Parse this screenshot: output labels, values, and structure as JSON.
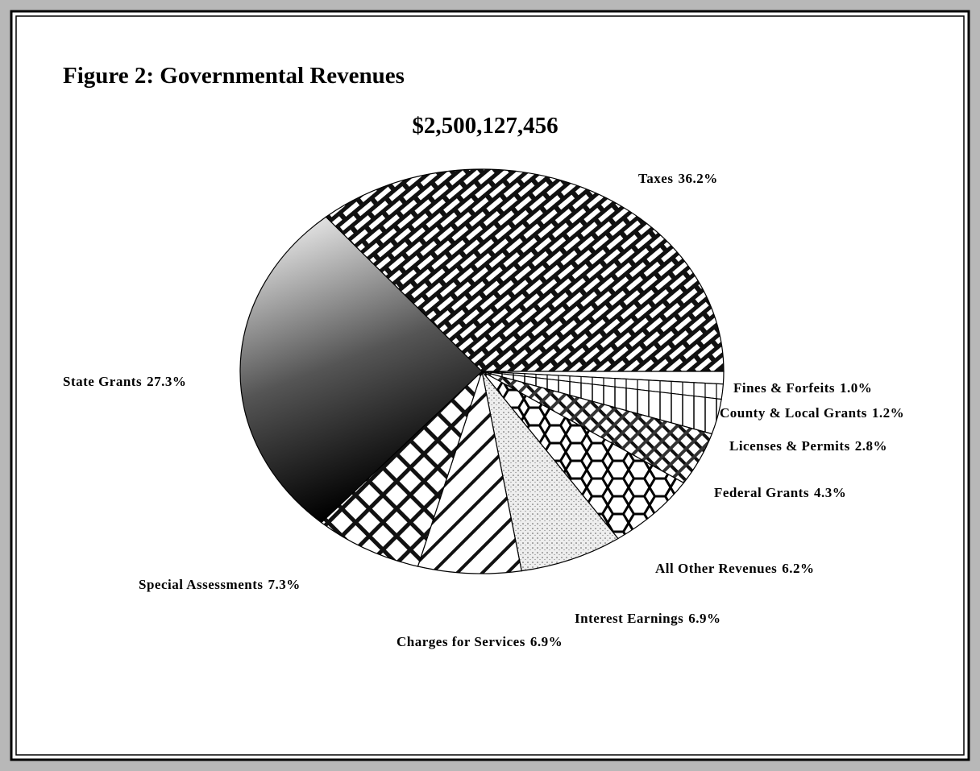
{
  "chart_data": {
    "type": "pie",
    "title": "Figure 2: Governmental Revenues",
    "subtitle": "$2,500,127,456",
    "categories": [
      "Taxes",
      "Fines & Forfeits",
      "County & Local Grants",
      "Licenses & Permits",
      "Federal Grants",
      "All Other Revenues",
      "Interest Earnings",
      "Charges for Services",
      "Special Assessments",
      "State Grants"
    ],
    "values": [
      36.2,
      1.0,
      1.2,
      2.8,
      4.3,
      6.2,
      6.9,
      6.9,
      7.3,
      27.3
    ],
    "value_labels": [
      "36.2%",
      "1.0%",
      "1.2%",
      "2.8%",
      "4.3%",
      "6.2%",
      "6.9%",
      "6.9%",
      "7.3%",
      "27.3%"
    ]
  }
}
